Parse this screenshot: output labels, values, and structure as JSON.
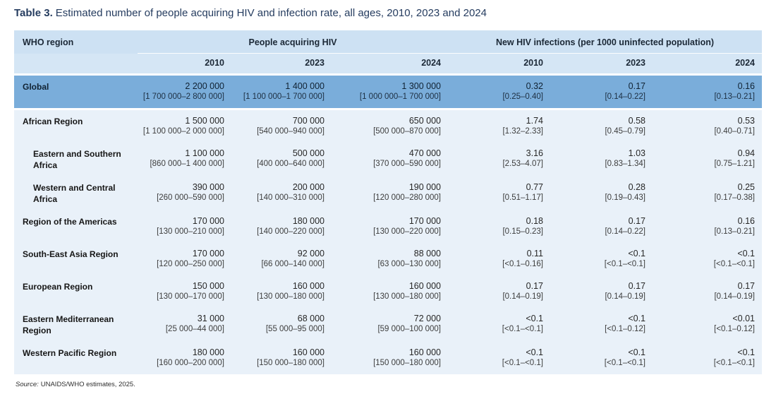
{
  "title": {
    "label": "Table 3.",
    "text": "Estimated number of people acquiring HIV and infection rate, all ages, 2010, 2023 and 2024"
  },
  "colors": {
    "header_band": "#cde1f3",
    "year_band": "#d5e6f5",
    "global_row": "#7aadda",
    "body_band": "#e9f1f9",
    "title_text": "#253c5f"
  },
  "table": {
    "region_header": "WHO region",
    "groups": [
      {
        "label": "People acquiring HIV",
        "years": [
          "2010",
          "2023",
          "2024"
        ]
      },
      {
        "label": "New HIV infections (per 1000 uninfected population)",
        "years": [
          "2010",
          "2023",
          "2024"
        ]
      }
    ],
    "rows": [
      {
        "name": "Global",
        "indent": false,
        "highlight": true,
        "cells": [
          {
            "v": "2 200 000",
            "r": "[1 700 000–2 800 000]"
          },
          {
            "v": "1 400 000",
            "r": "[1 100 000–1 700 000]"
          },
          {
            "v": "1 300 000",
            "r": "[1 000 000–1 700 000]"
          },
          {
            "v": "0.32",
            "r": "[0.25–0.40]"
          },
          {
            "v": "0.17",
            "r": "[0.14–0.22]"
          },
          {
            "v": "0.16",
            "r": "[0.13–0.21]"
          }
        ]
      },
      {
        "name": "African Region",
        "indent": false,
        "highlight": false,
        "cells": [
          {
            "v": "1 500 000",
            "r": "[1 100 000–2 000 000]"
          },
          {
            "v": "700 000",
            "r": "[540 000–940 000]"
          },
          {
            "v": "650 000",
            "r": "[500 000–870 000]"
          },
          {
            "v": "1.74",
            "r": "[1.32–2.33]"
          },
          {
            "v": "0.58",
            "r": "[0.45–0.79]"
          },
          {
            "v": "0.53",
            "r": "[0.40–0.71]"
          }
        ]
      },
      {
        "name": "Eastern and Southern Africa",
        "indent": true,
        "highlight": false,
        "cells": [
          {
            "v": "1 100 000",
            "r": "[860 000–1 400 000]"
          },
          {
            "v": "500 000",
            "r": "[400 000–640 000]"
          },
          {
            "v": "470 000",
            "r": "[370 000–590 000]"
          },
          {
            "v": "3.16",
            "r": "[2.53–4.07]"
          },
          {
            "v": "1.03",
            "r": "[0.83–1.34]"
          },
          {
            "v": "0.94",
            "r": "[0.75–1.21]"
          }
        ]
      },
      {
        "name": "Western and Central Africa",
        "indent": true,
        "highlight": false,
        "cells": [
          {
            "v": "390 000",
            "r": "[260 000–590 000]"
          },
          {
            "v": "200 000",
            "r": "[140 000–310 000]"
          },
          {
            "v": "190 000",
            "r": "[120 000–280 000]"
          },
          {
            "v": "0.77",
            "r": "[0.51–1.17]"
          },
          {
            "v": "0.28",
            "r": "[0.19–0.43]"
          },
          {
            "v": "0.25",
            "r": "[0.17–0.38]"
          }
        ]
      },
      {
        "name": "Region of the Americas",
        "indent": false,
        "highlight": false,
        "cells": [
          {
            "v": "170 000",
            "r": "[130 000–210 000]"
          },
          {
            "v": "180 000",
            "r": "[140 000–220 000]"
          },
          {
            "v": "170 000",
            "r": "[130 000–220 000]"
          },
          {
            "v": "0.18",
            "r": "[0.15–0.23]"
          },
          {
            "v": "0.17",
            "r": "[0.14–0.22]"
          },
          {
            "v": "0.16",
            "r": "[0.13–0.21]"
          }
        ]
      },
      {
        "name": "South-East Asia Region",
        "indent": false,
        "highlight": false,
        "cells": [
          {
            "v": "170 000",
            "r": "[120 000–250 000]"
          },
          {
            "v": "92 000",
            "r": "[66 000–140 000]"
          },
          {
            "v": "88 000",
            "r": "[63 000–130 000]"
          },
          {
            "v": "0.11",
            "r": "[<0.1–0.16]"
          },
          {
            "v": "<0.1",
            "r": "[<0.1–<0.1]"
          },
          {
            "v": "<0.1",
            "r": "[<0.1–<0.1]"
          }
        ]
      },
      {
        "name": "European Region",
        "indent": false,
        "highlight": false,
        "cells": [
          {
            "v": "150 000",
            "r": "[130 000–170 000]"
          },
          {
            "v": "160 000",
            "r": "[130 000–180 000]"
          },
          {
            "v": "160 000",
            "r": "[130 000–180 000]"
          },
          {
            "v": "0.17",
            "r": "[0.14–0.19]"
          },
          {
            "v": "0.17",
            "r": "[0.14–0.19]"
          },
          {
            "v": "0.17",
            "r": "[0.14–0.19]"
          }
        ]
      },
      {
        "name": "Eastern Mediterranean Region",
        "indent": false,
        "highlight": false,
        "cells": [
          {
            "v": "31 000",
            "r": "[25 000–44 000]"
          },
          {
            "v": "68 000",
            "r": "[55 000–95 000]"
          },
          {
            "v": "72 000",
            "r": "[59 000–100 000]"
          },
          {
            "v": "<0.1",
            "r": "[<0.1–<0.1]"
          },
          {
            "v": "<0.1",
            "r": "[<0.1–0.12]"
          },
          {
            "v": "<0.01",
            "r": "[<0.1–0.12]"
          }
        ]
      },
      {
        "name": "Western Pacific Region",
        "indent": false,
        "highlight": false,
        "cells": [
          {
            "v": "180 000",
            "r": "[160 000–200 000]"
          },
          {
            "v": "160 000",
            "r": "[150 000–180 000]"
          },
          {
            "v": "160 000",
            "r": "[150 000–180 000]"
          },
          {
            "v": "<0.1",
            "r": "[<0.1–<0.1]"
          },
          {
            "v": "<0.1",
            "r": "[<0.1–<0.1]"
          },
          {
            "v": "<0.1",
            "r": "[<0.1–<0.1]"
          }
        ]
      }
    ]
  },
  "footer": {
    "source_label": "Source:",
    "source_text": "UNAIDS/WHO estimates, 2025."
  }
}
